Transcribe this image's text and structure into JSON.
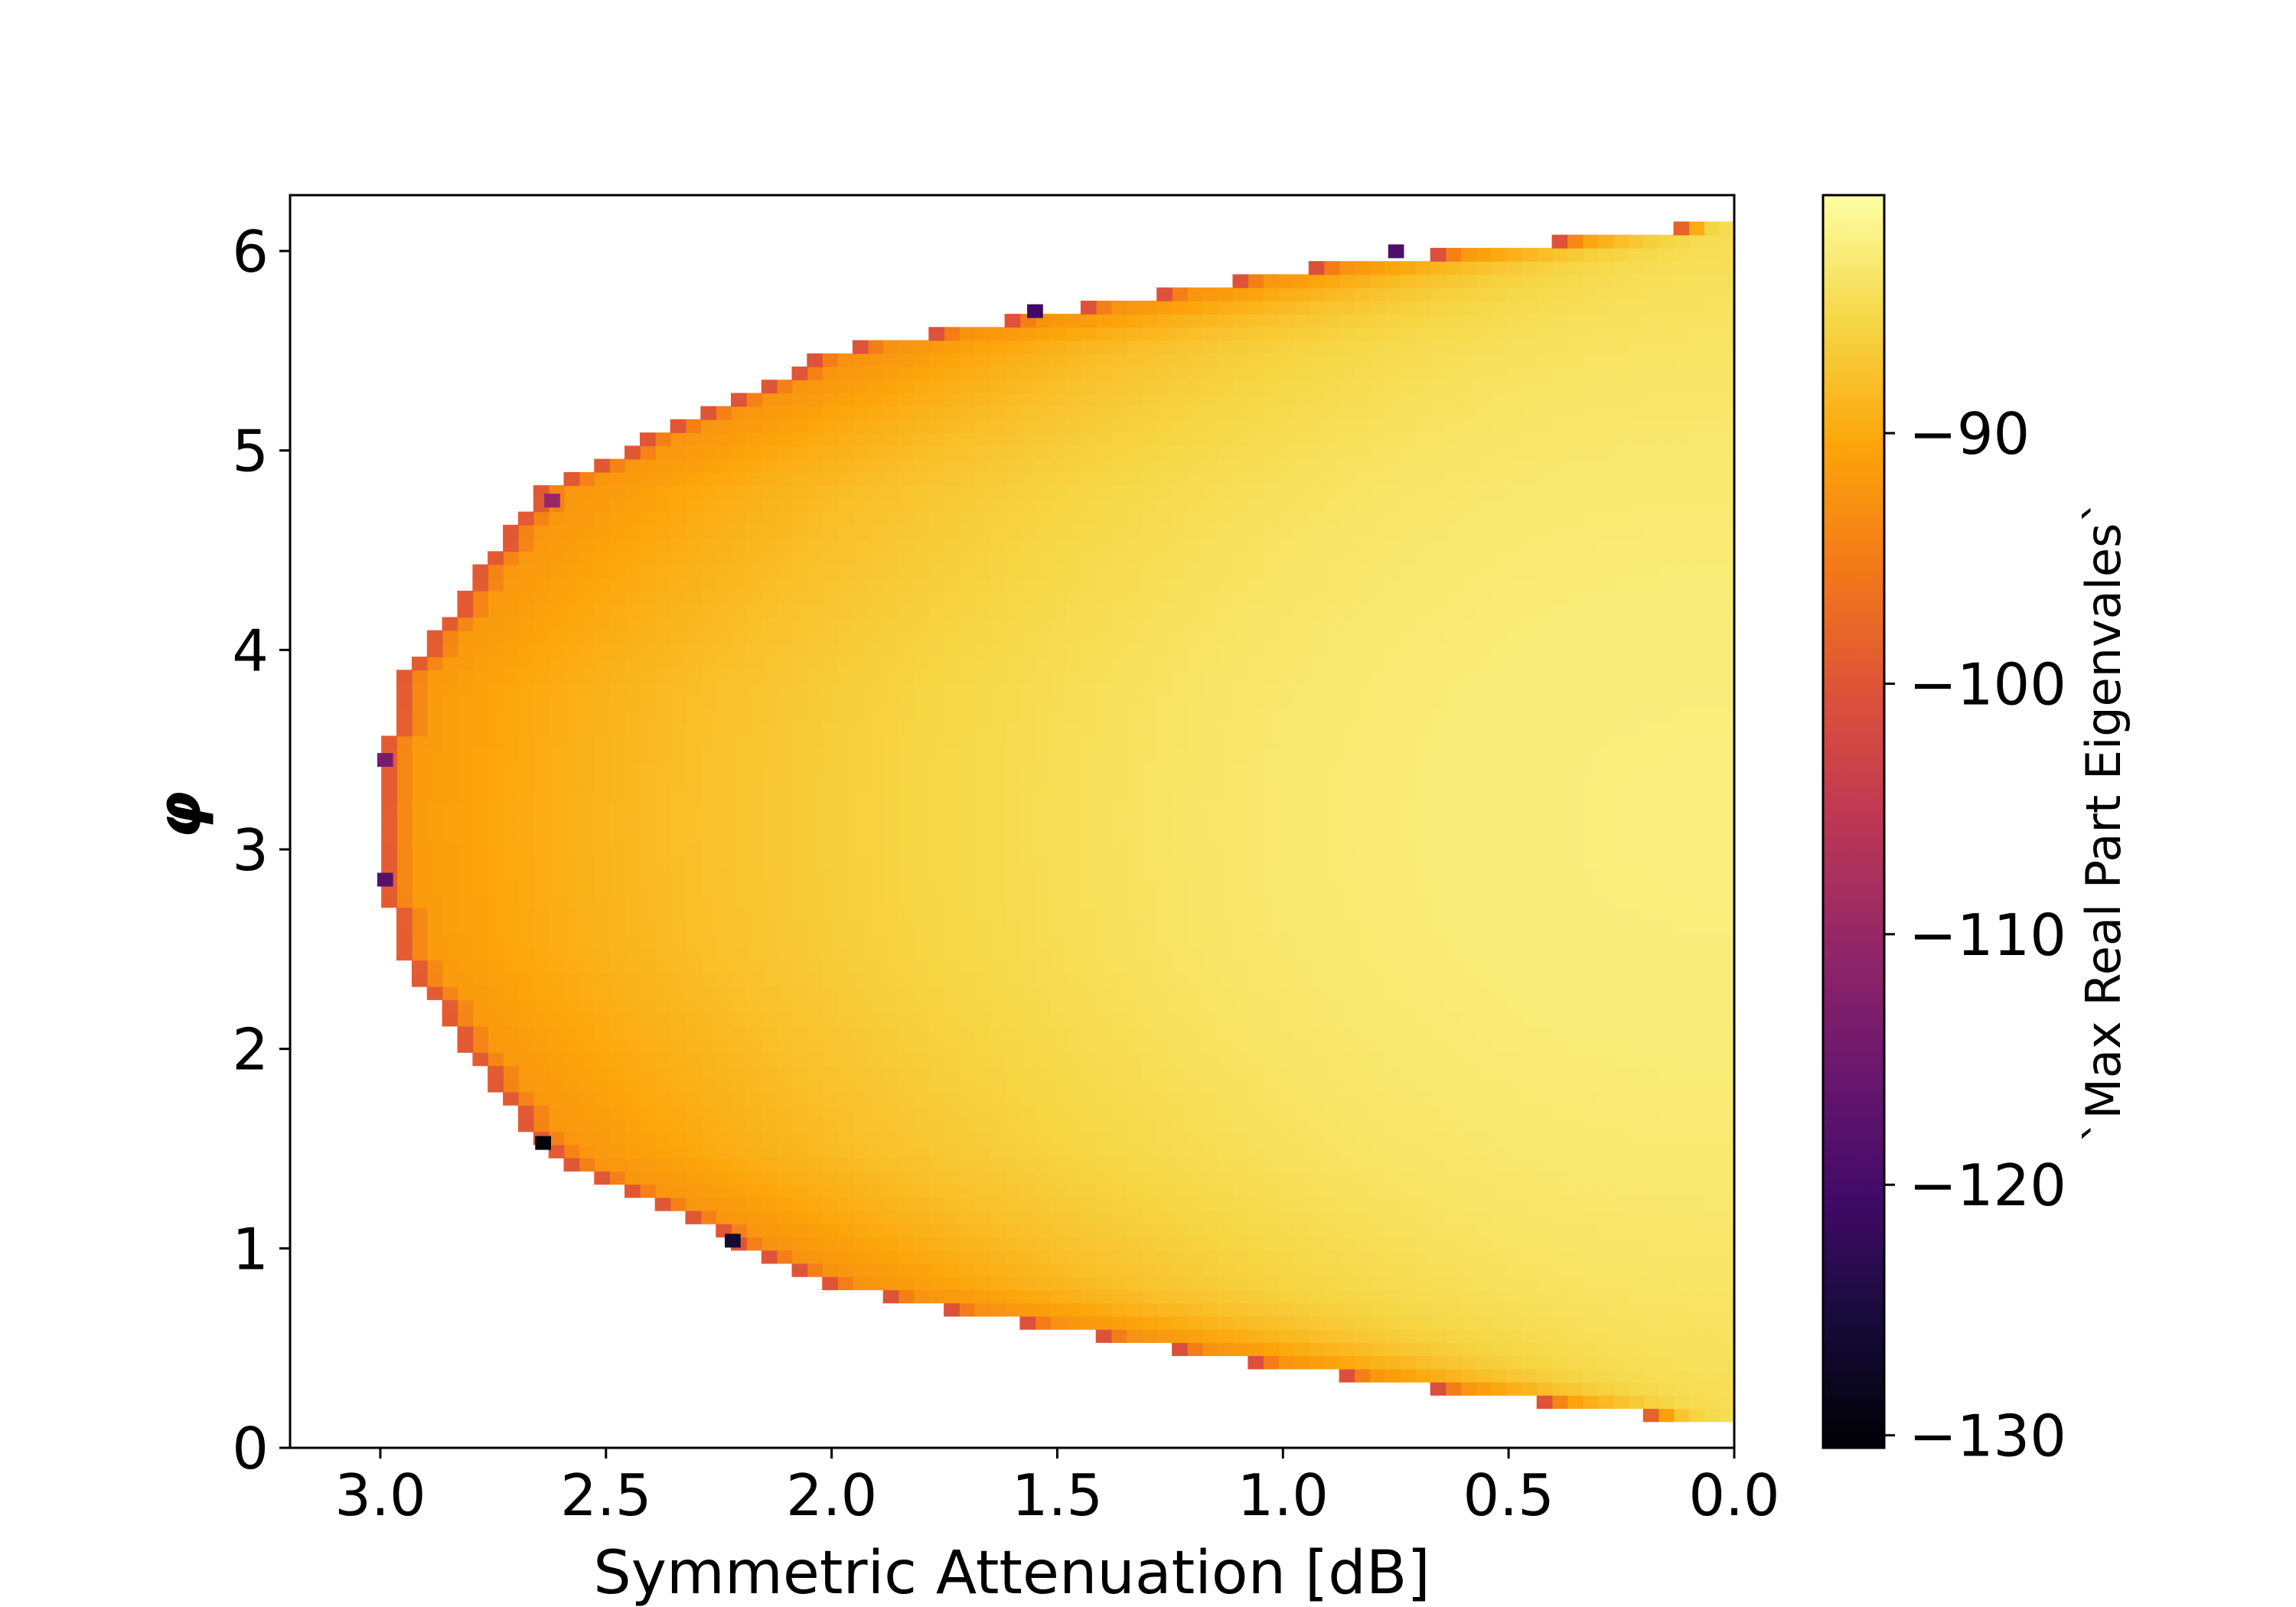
{
  "chart_data": {
    "type": "heatmap",
    "title": "",
    "xlabel": "Symmetric Attenuation [dB]",
    "ylabel": "φ",
    "xlim": [
      3.2,
      0.0
    ],
    "ylim": [
      0.0,
      6.28
    ],
    "x_axis_reversed": true,
    "grid": false,
    "x_ticks": [
      {
        "value": 3.0,
        "label": "3.0"
      },
      {
        "value": 2.5,
        "label": "2.5"
      },
      {
        "value": 2.0,
        "label": "2.0"
      },
      {
        "value": 1.5,
        "label": "1.5"
      },
      {
        "value": 1.0,
        "label": "1.0"
      },
      {
        "value": 0.5,
        "label": "0.5"
      },
      {
        "value": 0.0,
        "label": "0.0"
      }
    ],
    "y_ticks": [
      {
        "value": 0,
        "label": "0"
      },
      {
        "value": 1,
        "label": "1"
      },
      {
        "value": 2,
        "label": "2"
      },
      {
        "value": 3,
        "label": "3"
      },
      {
        "value": 4,
        "label": "4"
      },
      {
        "value": 5,
        "label": "5"
      },
      {
        "value": 6,
        "label": "6"
      }
    ],
    "grid_resolution": {
      "nx": 95,
      "ny": 95
    },
    "stable_region": {
      "center_phi": 3.1416,
      "boundary_attenuation_dB": [
        {
          "phi": 0.1,
          "atten": 0.0
        },
        {
          "phi": 0.4,
          "atten": 1.0
        },
        {
          "phi": 0.8,
          "atten": 2.0
        },
        {
          "phi": 1.5,
          "atten": 2.65
        },
        {
          "phi": 2.5,
          "atten": 2.97
        },
        {
          "phi": 3.14,
          "atten": 3.0
        },
        {
          "phi": 3.8,
          "atten": 2.97
        },
        {
          "phi": 4.8,
          "atten": 2.65
        },
        {
          "phi": 5.5,
          "atten": 2.0
        },
        {
          "phi": 5.9,
          "atten": 1.0
        },
        {
          "phi": 6.15,
          "atten": 0.0
        }
      ],
      "value_at_center_dB0": -82.5,
      "value_at_boundary": -92.0,
      "outlier_cells": [
        {
          "phi": 1.53,
          "atten": 2.64,
          "value": -130
        },
        {
          "phi": 1.04,
          "atten": 2.22,
          "value": -126
        },
        {
          "phi": 5.7,
          "atten": 1.55,
          "value": -121
        },
        {
          "phi": 6.0,
          "atten": 0.75,
          "value": -119
        },
        {
          "phi": 2.85,
          "atten": 2.99,
          "value": -118
        },
        {
          "phi": 3.45,
          "atten": 2.99,
          "value": -114
        },
        {
          "phi": 4.75,
          "atten": 2.62,
          "value": -110
        }
      ]
    },
    "colorbar": {
      "label": "`Max Real Part Eigenvales`",
      "colormap": "inferno",
      "vmin": -130.5,
      "vmax": -80.5,
      "ticks": [
        {
          "value": -90,
          "label": "−90"
        },
        {
          "value": -100,
          "label": "−100"
        },
        {
          "value": -110,
          "label": "−110"
        },
        {
          "value": -120,
          "label": "−120"
        },
        {
          "value": -130,
          "label": "−130"
        }
      ]
    }
  }
}
